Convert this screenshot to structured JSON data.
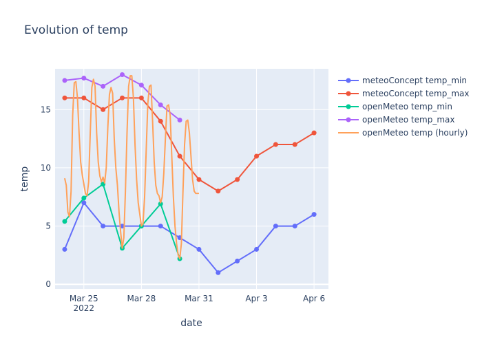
{
  "chart_data": {
    "type": "line",
    "title": "Evolution of temp",
    "xlabel": "date",
    "ylabel": "temp",
    "ylim": [
      -0.4,
      18.5
    ],
    "xlim": [
      "2022-03-23 12:00",
      "2022-04-06 18:00"
    ],
    "grid": true,
    "legend_position": "right",
    "x_ticks": [
      {
        "date": "2022-03-25",
        "label": "Mar 25",
        "sublabel": "2022"
      },
      {
        "date": "2022-03-28",
        "label": "Mar 28",
        "sublabel": ""
      },
      {
        "date": "2022-03-31",
        "label": "Mar 31",
        "sublabel": ""
      },
      {
        "date": "2022-04-03",
        "label": "Apr 3",
        "sublabel": ""
      },
      {
        "date": "2022-04-06",
        "label": "Apr 6",
        "sublabel": ""
      }
    ],
    "y_ticks": [
      0,
      5,
      10,
      15
    ],
    "series": [
      {
        "name": "meteoConcept temp_min",
        "color": "#636efa",
        "mode": "lines+markers",
        "x": [
          "2022-03-24",
          "2022-03-25",
          "2022-03-26",
          "2022-03-27",
          "2022-03-28",
          "2022-03-29",
          "2022-03-30",
          "2022-03-31",
          "2022-04-01",
          "2022-04-02",
          "2022-04-03",
          "2022-04-04",
          "2022-04-05",
          "2022-04-06"
        ],
        "y": [
          3,
          7,
          5,
          5,
          5,
          5,
          4,
          3,
          1,
          2,
          3,
          5,
          5,
          6
        ]
      },
      {
        "name": "meteoConcept temp_max",
        "color": "#EF553B",
        "mode": "lines+markers",
        "x": [
          "2022-03-24",
          "2022-03-25",
          "2022-03-26",
          "2022-03-27",
          "2022-03-28",
          "2022-03-29",
          "2022-03-30",
          "2022-03-31",
          "2022-04-01",
          "2022-04-02",
          "2022-04-03",
          "2022-04-04",
          "2022-04-05",
          "2022-04-06"
        ],
        "y": [
          16,
          16,
          15,
          16,
          16,
          14,
          11,
          9,
          8,
          9,
          11,
          12,
          12,
          13
        ]
      },
      {
        "name": "openMeteo temp_min",
        "color": "#00cc96",
        "mode": "lines+markers",
        "x": [
          "2022-03-24",
          "2022-03-25",
          "2022-03-26",
          "2022-03-27",
          "2022-03-28",
          "2022-03-29",
          "2022-03-30"
        ],
        "y": [
          5.4,
          7.4,
          8.6,
          3.1,
          5.0,
          6.9,
          2.2
        ]
      },
      {
        "name": "openMeteo temp_max",
        "color": "#ab63fa",
        "mode": "lines+markers",
        "x": [
          "2022-03-24",
          "2022-03-25",
          "2022-03-26",
          "2022-03-27",
          "2022-03-28",
          "2022-03-29",
          "2022-03-30"
        ],
        "y": [
          17.5,
          17.7,
          17.0,
          18.0,
          17.1,
          15.4,
          14.1
        ]
      },
      {
        "name": "openMeteo temp (hourly)",
        "color": "#FFA15A",
        "mode": "lines",
        "x": [
          "2022-03-24 00:00",
          "2022-03-24 02:00",
          "2022-03-24 04:00",
          "2022-03-24 06:00",
          "2022-03-24 08:00",
          "2022-03-24 10:00",
          "2022-03-24 12:00",
          "2022-03-24 14:00",
          "2022-03-24 16:00",
          "2022-03-24 18:00",
          "2022-03-24 20:00",
          "2022-03-24 22:00",
          "2022-03-25 00:00",
          "2022-03-25 02:00",
          "2022-03-25 04:00",
          "2022-03-25 06:00",
          "2022-03-25 08:00",
          "2022-03-25 10:00",
          "2022-03-25 12:00",
          "2022-03-25 14:00",
          "2022-03-25 16:00",
          "2022-03-25 18:00",
          "2022-03-25 20:00",
          "2022-03-25 22:00",
          "2022-03-26 00:00",
          "2022-03-26 02:00",
          "2022-03-26 04:00",
          "2022-03-26 06:00",
          "2022-03-26 08:00",
          "2022-03-26 10:00",
          "2022-03-26 12:00",
          "2022-03-26 14:00",
          "2022-03-26 16:00",
          "2022-03-26 18:00",
          "2022-03-26 20:00",
          "2022-03-26 22:00",
          "2022-03-27 00:00",
          "2022-03-27 02:00",
          "2022-03-27 04:00",
          "2022-03-27 06:00",
          "2022-03-27 08:00",
          "2022-03-27 10:00",
          "2022-03-27 12:00",
          "2022-03-27 14:00",
          "2022-03-27 16:00",
          "2022-03-27 18:00",
          "2022-03-27 20:00",
          "2022-03-27 22:00",
          "2022-03-28 00:00",
          "2022-03-28 02:00",
          "2022-03-28 04:00",
          "2022-03-28 06:00",
          "2022-03-28 08:00",
          "2022-03-28 10:00",
          "2022-03-28 12:00",
          "2022-03-28 14:00",
          "2022-03-28 16:00",
          "2022-03-28 18:00",
          "2022-03-28 20:00",
          "2022-03-28 22:00",
          "2022-03-29 00:00",
          "2022-03-29 02:00",
          "2022-03-29 04:00",
          "2022-03-29 06:00",
          "2022-03-29 08:00",
          "2022-03-29 10:00",
          "2022-03-29 12:00",
          "2022-03-29 14:00",
          "2022-03-29 16:00",
          "2022-03-29 18:00",
          "2022-03-29 20:00",
          "2022-03-29 22:00",
          "2022-03-30 00:00",
          "2022-03-30 02:00",
          "2022-03-30 04:00",
          "2022-03-30 06:00",
          "2022-03-30 08:00",
          "2022-03-30 10:00",
          "2022-03-30 12:00",
          "2022-03-30 14:00",
          "2022-03-30 16:00",
          "2022-03-30 18:00",
          "2022-03-30 20:00",
          "2022-03-30 22:00",
          "2022-03-31 00:00"
        ],
        "y": [
          9.1,
          8.5,
          6.2,
          5.8,
          8.0,
          14.5,
          17.3,
          17.4,
          16.0,
          13.0,
          10.5,
          9.4,
          8.6,
          7.8,
          7.6,
          8.8,
          13.0,
          16.9,
          17.6,
          17.0,
          13.0,
          10.5,
          9.3,
          8.8,
          9.2,
          8.7,
          10.0,
          13.5,
          16.3,
          16.9,
          16.4,
          12.5,
          10.0,
          8.5,
          6.2,
          4.5,
          3.1,
          4.0,
          8.0,
          13.0,
          17.0,
          17.9,
          17.9,
          16.0,
          12.0,
          9.0,
          7.0,
          6.0,
          5.0,
          5.2,
          7.5,
          11.5,
          15.5,
          17.0,
          17.1,
          14.0,
          10.5,
          8.5,
          7.8,
          7.6,
          7.0,
          7.5,
          9.5,
          12.5,
          15.3,
          15.4,
          14.5,
          11.0,
          7.5,
          5.0,
          3.5,
          2.5,
          2.2,
          3.5,
          8.0,
          12.0,
          14.0,
          14.1,
          13.0,
          11.0,
          9.0,
          8.0,
          7.8,
          7.8,
          7.8
        ]
      }
    ]
  }
}
